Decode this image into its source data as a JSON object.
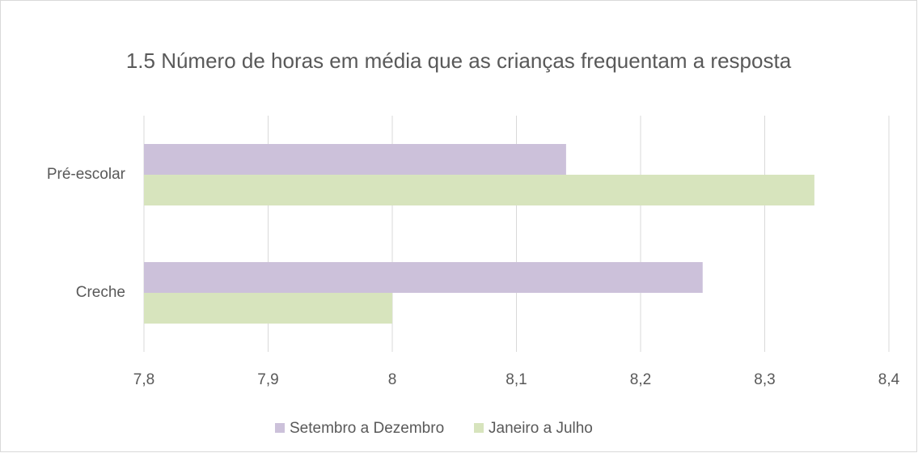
{
  "chart_data": {
    "type": "bar",
    "orientation": "horizontal",
    "title": "1.5 Número de horas em média que as crianças frequentam a resposta",
    "categories": [
      "Pré-escolar",
      "Creche"
    ],
    "series": [
      {
        "name": "Setembro a Dezembro",
        "color": "#ccc1da",
        "values": [
          8.14,
          8.25
        ]
      },
      {
        "name": "Janeiro a Julho",
        "color": "#d7e4bd",
        "values": [
          8.34,
          8.0
        ]
      }
    ],
    "xlim": [
      7.8,
      8.4
    ],
    "xticks": [
      {
        "value": 7.8,
        "label": "7,8"
      },
      {
        "value": 7.9,
        "label": "7,9"
      },
      8,
      {
        "value": 8.1,
        "label": "8,1"
      },
      {
        "value": 8.2,
        "label": "8,2"
      },
      {
        "value": 8.3,
        "label": "8,3"
      },
      {
        "value": 8.4,
        "label": "8,4"
      }
    ],
    "grid": true,
    "legend": "bottom"
  }
}
